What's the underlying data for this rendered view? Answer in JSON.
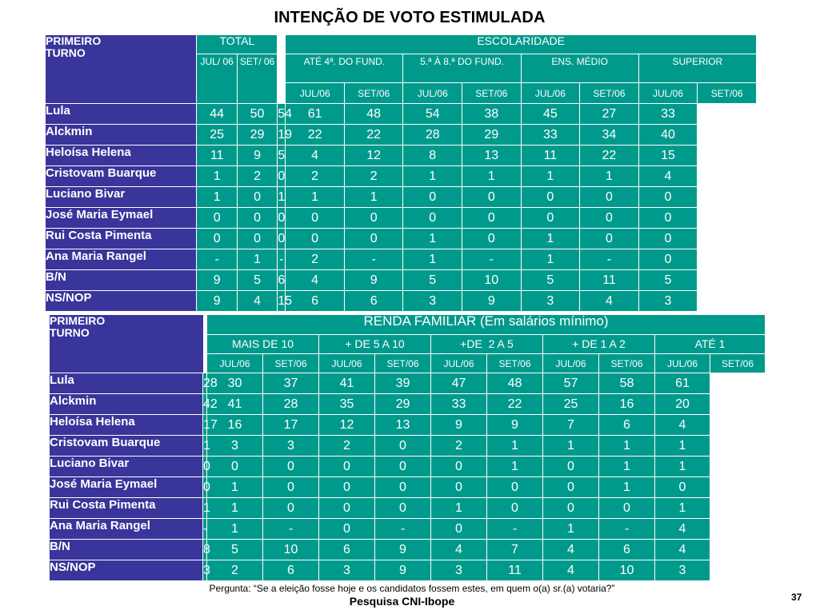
{
  "title": "INTENÇÃO DE VOTO ESTIMULADA",
  "table1": {
    "corner": [
      "PRIMEIRO",
      "TURNO"
    ],
    "total": {
      "label": "TOTAL",
      "periods": [
        "JUL/ 06",
        "SET/ 06"
      ]
    },
    "group": {
      "label": "ESCOLARIDADE",
      "subgroups": [
        "ATÉ 4ª. DO FUND.",
        "5.ª À 8.ª DO FUND.",
        "ENS. MÉDIO",
        "SUPERIOR"
      ],
      "periods": [
        "JUL/06",
        "SET/06"
      ]
    },
    "rows": [
      {
        "name": "Lula",
        "values": [
          "44",
          "50",
          "54",
          "61",
          "48",
          "54",
          "38",
          "45",
          "27",
          "33"
        ]
      },
      {
        "name": "Alckmin",
        "values": [
          "25",
          "29",
          "19",
          "22",
          "22",
          "28",
          "29",
          "33",
          "34",
          "40"
        ]
      },
      {
        "name": "Heloísa Helena",
        "values": [
          "11",
          "9",
          "5",
          "4",
          "12",
          "8",
          "13",
          "11",
          "22",
          "15"
        ]
      },
      {
        "name": "Cristovam Buarque",
        "values": [
          "1",
          "2",
          "0",
          "2",
          "2",
          "1",
          "1",
          "1",
          "1",
          "4"
        ]
      },
      {
        "name": "Luciano Bivar",
        "values": [
          "1",
          "0",
          "1",
          "1",
          "1",
          "0",
          "0",
          "0",
          "0",
          "0"
        ]
      },
      {
        "name": "José Maria Eymael",
        "values": [
          "0",
          "0",
          "0",
          "0",
          "0",
          "0",
          "0",
          "0",
          "0",
          "0"
        ]
      },
      {
        "name": "Rui Costa Pimenta",
        "values": [
          "0",
          "0",
          "0",
          "0",
          "0",
          "1",
          "0",
          "1",
          "0",
          "0"
        ]
      },
      {
        "name": "Ana Maria Rangel",
        "values": [
          "-",
          "1",
          "-",
          "2",
          "-",
          "1",
          "-",
          "1",
          "-",
          "0"
        ]
      },
      {
        "name": "B/N",
        "values": [
          "9",
          "5",
          "6",
          "4",
          "9",
          "5",
          "10",
          "5",
          "11",
          "5"
        ]
      },
      {
        "name": "NS/NOP",
        "values": [
          "9",
          "4",
          "15",
          "6",
          "6",
          "3",
          "9",
          "3",
          "4",
          "3"
        ]
      }
    ]
  },
  "table2": {
    "corner": [
      "PRIMEIRO",
      "TURNO"
    ],
    "group": {
      "label": "RENDA FAMILIAR (Em salários mínimo)",
      "subgroups": [
        "MAIS DE 10",
        "+ DE 5 A 10",
        "+DE  2 A 5",
        "+ DE 1 A 2",
        "ATÉ 1"
      ],
      "periods": [
        "JUL/06",
        "SET/06"
      ]
    },
    "rows": [
      {
        "name": "Lula",
        "values": [
          "28",
          "30",
          "37",
          "41",
          "39",
          "47",
          "48",
          "57",
          "58",
          "61"
        ]
      },
      {
        "name": "Alckmin",
        "values": [
          "42",
          "41",
          "28",
          "35",
          "29",
          "33",
          "22",
          "25",
          "16",
          "20"
        ]
      },
      {
        "name": "Heloísa Helena",
        "values": [
          "17",
          "16",
          "17",
          "12",
          "13",
          "9",
          "9",
          "7",
          "6",
          "4"
        ]
      },
      {
        "name": "Cristovam Buarque",
        "values": [
          "1",
          "3",
          "3",
          "2",
          "0",
          "2",
          "1",
          "1",
          "1",
          "1"
        ]
      },
      {
        "name": "Luciano Bivar",
        "values": [
          "0",
          "0",
          "0",
          "0",
          "0",
          "0",
          "1",
          "0",
          "1",
          "1"
        ]
      },
      {
        "name": "José Maria Eymael",
        "values": [
          "0",
          "1",
          "0",
          "0",
          "0",
          "0",
          "0",
          "0",
          "1",
          "0"
        ]
      },
      {
        "name": "Rui Costa Pimenta",
        "values": [
          "1",
          "1",
          "0",
          "0",
          "0",
          "1",
          "0",
          "0",
          "0",
          "1"
        ]
      },
      {
        "name": "Ana Maria Rangel",
        "values": [
          "-",
          "1",
          "-",
          "0",
          "-",
          "0",
          "-",
          "1",
          "-",
          "4"
        ]
      },
      {
        "name": "B/N",
        "values": [
          "8",
          "5",
          "10",
          "6",
          "9",
          "4",
          "7",
          "4",
          "6",
          "4"
        ]
      },
      {
        "name": "NS/NOP",
        "values": [
          "3",
          "2",
          "6",
          "3",
          "9",
          "3",
          "11",
          "4",
          "10",
          "3"
        ]
      }
    ]
  },
  "footer": {
    "question": "Pergunta: “Se a eleição fosse hoje e os candidatos fossem estes, em quem o(a) sr.(a) votaria?”",
    "source": "Pesquisa CNI-Ibope",
    "page": "37"
  },
  "colors": {
    "teal": "#009a8c",
    "navy": "#39359a",
    "white": "#ffffff"
  }
}
